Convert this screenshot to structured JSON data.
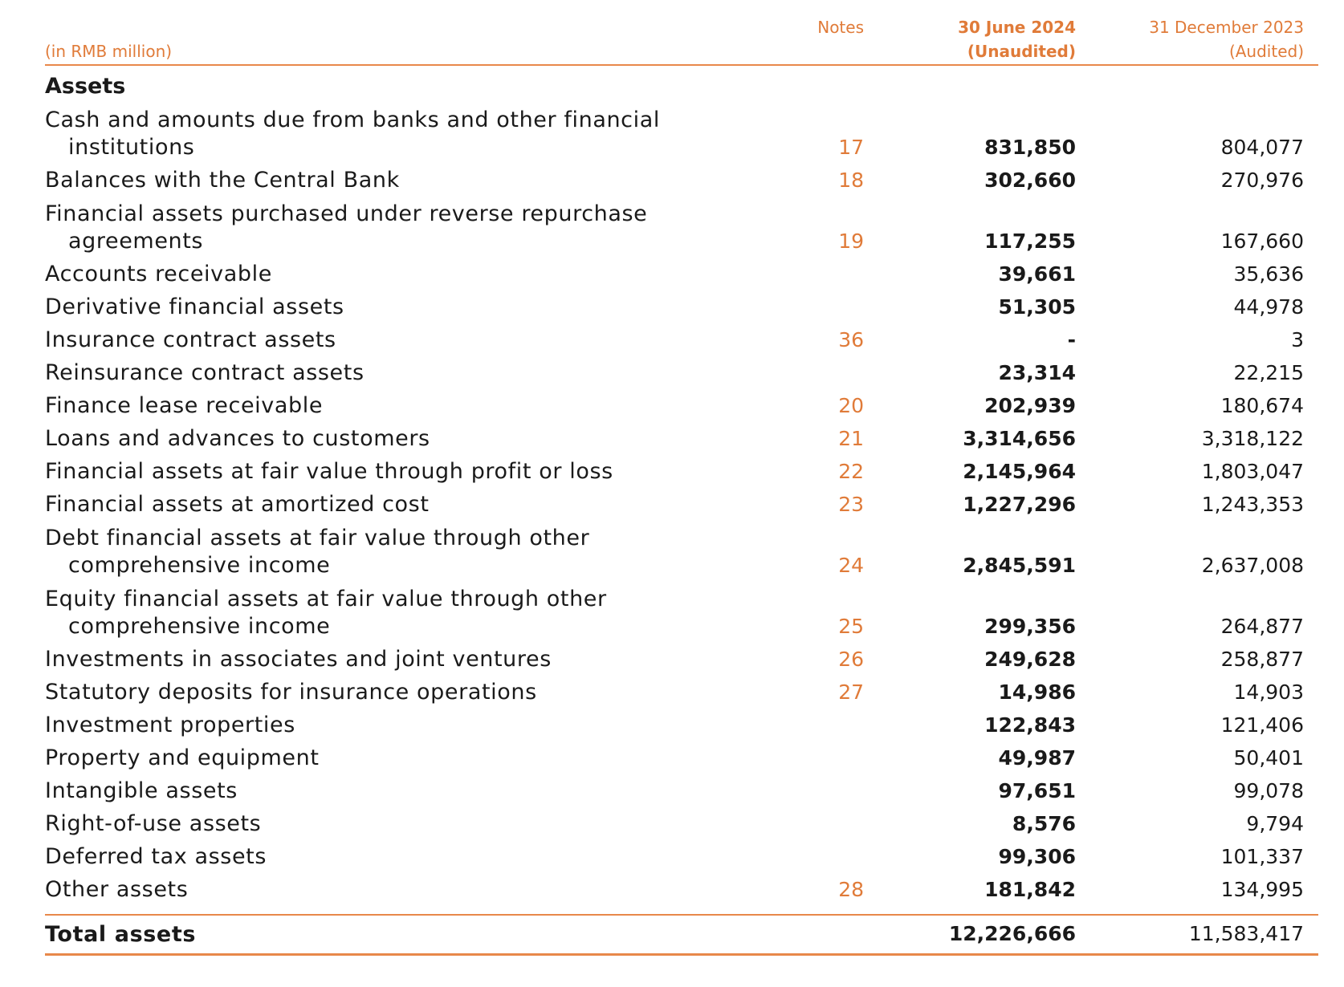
{
  "header": {
    "unit": "(in RMB million)",
    "notes": "Notes",
    "current_date": "30 June 2024",
    "current_status": "(Unaudited)",
    "prior_date": "31 December 2023",
    "prior_status": "(Audited)"
  },
  "section_title": "Assets",
  "rows": [
    {
      "line1": "Cash and amounts due from banks and other financial",
      "line2": "institutions",
      "note": "17",
      "current": "831,850",
      "prior": "804,077"
    },
    {
      "line1": "Balances with the Central Bank",
      "note": "18",
      "current": "302,660",
      "prior": "270,976"
    },
    {
      "line1": "Financial assets purchased under reverse repurchase",
      "line2": "agreements",
      "note": "19",
      "current": "117,255",
      "prior": "167,660"
    },
    {
      "line1": "Accounts receivable",
      "note": "",
      "current": "39,661",
      "prior": "35,636"
    },
    {
      "line1": "Derivative financial assets",
      "note": "",
      "current": "51,305",
      "prior": "44,978"
    },
    {
      "line1": "Insurance contract assets",
      "note": "36",
      "current": "-",
      "prior": "3"
    },
    {
      "line1": "Reinsurance contract assets",
      "note": "",
      "current": "23,314",
      "prior": "22,215"
    },
    {
      "line1": "Finance lease receivable",
      "note": "20",
      "current": "202,939",
      "prior": "180,674"
    },
    {
      "line1": "Loans and advances to customers",
      "note": "21",
      "current": "3,314,656",
      "prior": "3,318,122"
    },
    {
      "line1": "Financial assets at fair value through profit or loss",
      "note": "22",
      "current": "2,145,964",
      "prior": "1,803,047"
    },
    {
      "line1": "Financial assets at amortized cost",
      "note": "23",
      "current": "1,227,296",
      "prior": "1,243,353"
    },
    {
      "line1": "Debt financial assets at fair value through other",
      "line2": "comprehensive income",
      "note": "24",
      "current": "2,845,591",
      "prior": "2,637,008"
    },
    {
      "line1": "Equity financial assets at fair value through other",
      "line2": "comprehensive income",
      "note": "25",
      "current": "299,356",
      "prior": "264,877"
    },
    {
      "line1": "Investments in associates and joint ventures",
      "note": "26",
      "current": "249,628",
      "prior": "258,877"
    },
    {
      "line1": "Statutory deposits for insurance operations",
      "note": "27",
      "current": "14,986",
      "prior": "14,903"
    },
    {
      "line1": "Investment properties",
      "note": "",
      "current": "122,843",
      "prior": "121,406"
    },
    {
      "line1": "Property and equipment",
      "note": "",
      "current": "49,987",
      "prior": "50,401"
    },
    {
      "line1": "Intangible assets",
      "note": "",
      "current": "97,651",
      "prior": "99,078"
    },
    {
      "line1": "Right-of-use assets",
      "note": "",
      "current": "8,576",
      "prior": "9,794"
    },
    {
      "line1": "Deferred tax assets",
      "note": "",
      "current": "99,306",
      "prior": "101,337"
    },
    {
      "line1": "Other assets",
      "note": "28",
      "current": "181,842",
      "prior": "134,995"
    }
  ],
  "total": {
    "label": "Total assets",
    "current": "12,226,666",
    "prior": "11,583,417"
  }
}
